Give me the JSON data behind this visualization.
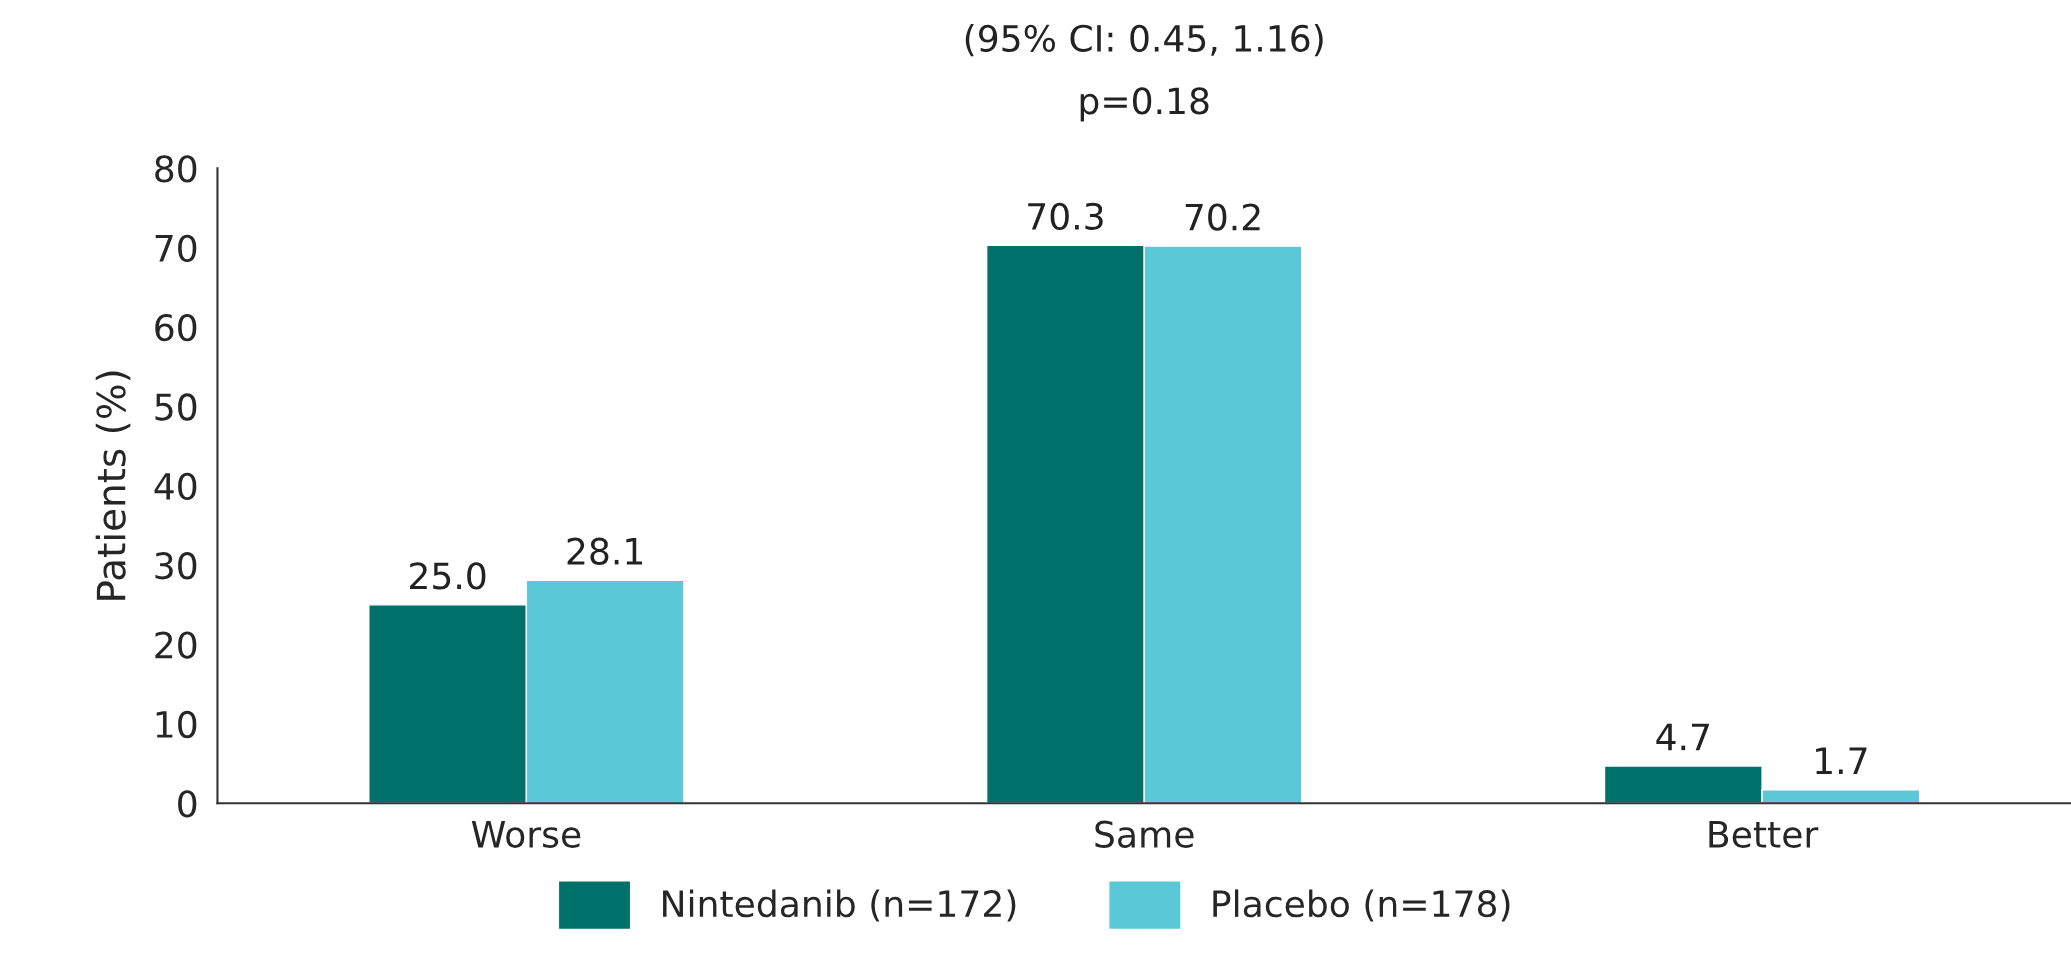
{
  "chart_data": {
    "type": "bar",
    "ylabel": "Patients (%)",
    "categories": [
      "Worse",
      "Same",
      "Better"
    ],
    "series": [
      {
        "name": "Nintedanib (n=172)",
        "color": "#00706b",
        "values": [
          25.0,
          70.3,
          4.7
        ],
        "value_labels": [
          "25.0",
          "70.3",
          "4.7"
        ]
      },
      {
        "name": "Placebo (n=178)",
        "color": "#5bc8d8",
        "values": [
          28.1,
          70.2,
          1.7
        ],
        "value_labels": [
          "28.1",
          "70.2",
          "1.7"
        ]
      }
    ],
    "ylim": [
      0,
      80
    ],
    "yticks": [
      0,
      10,
      20,
      30,
      40,
      50,
      60,
      70,
      80
    ],
    "grid": false,
    "legend": "bottom",
    "annotations": [
      "(95% CI: 0.45, 1.16)",
      "p=0.18"
    ]
  }
}
